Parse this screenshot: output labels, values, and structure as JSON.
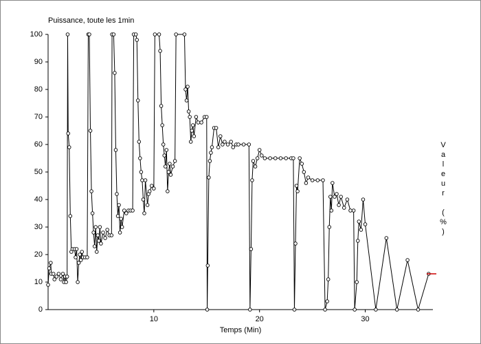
{
  "chart_data": {
    "type": "line",
    "title": "Puissance, toute les 1min",
    "x_label": "Temps (Min)",
    "y_label": "Valeur (%)",
    "color": "#000000",
    "x": [
      0,
      0.1,
      0.25,
      0.3,
      0.5,
      0.6,
      0.8,
      1.0,
      1.2,
      1.4,
      1.5,
      1.6,
      1.7,
      1.8,
      1.85,
      1.9,
      2.0,
      2.1,
      2.2,
      2.3,
      2.5,
      2.6,
      2.7,
      2.8,
      2.9,
      3.0,
      3.1,
      3.2,
      3.3,
      3.5,
      3.7,
      3.8,
      3.9,
      4.0,
      4.1,
      4.2,
      4.3,
      4.4,
      4.5,
      4.6,
      4.7,
      4.8,
      4.9,
      5.0,
      5.2,
      5.4,
      5.6,
      5.8,
      6.0,
      6.05,
      6.2,
      6.3,
      6.4,
      6.5,
      6.6,
      6.7,
      6.8,
      6.9,
      7.0,
      7.2,
      7.4,
      7.6,
      7.8,
      8.0,
      8.1,
      8.3,
      8.4,
      8.5,
      8.6,
      8.7,
      8.8,
      8.9,
      9.0,
      9.1,
      9.2,
      9.4,
      9.5,
      9.6,
      9.8,
      10.0,
      10.1,
      10.5,
      10.6,
      10.7,
      10.8,
      10.9,
      11.0,
      11.1,
      11.2,
      11.3,
      11.4,
      11.5,
      11.6,
      11.8,
      12.0,
      12.1,
      12.9,
      13.0,
      13.1,
      13.2,
      13.3,
      13.4,
      13.5,
      13.6,
      13.7,
      13.8,
      14.0,
      14.2,
      14.5,
      14.8,
      15.0,
      15.05,
      15.1,
      15.2,
      15.3,
      15.4,
      15.5,
      15.7,
      15.9,
      16.1,
      16.3,
      16.5,
      16.7,
      17.0,
      17.3,
      17.5,
      17.8,
      18.0,
      18.5,
      19.0,
      19.1,
      19.2,
      19.3,
      19.4,
      19.6,
      19.8,
      20.0,
      20.2,
      20.5,
      21.0,
      21.5,
      22.0,
      22.5,
      23.0,
      23.2,
      23.3,
      23.4,
      23.5,
      23.6,
      23.8,
      24.0,
      24.2,
      24.4,
      24.6,
      25.0,
      25.5,
      26.0,
      26.2,
      26.4,
      26.5,
      26.6,
      26.7,
      26.8,
      26.9,
      27.1,
      27.3,
      27.5,
      27.7,
      28.0,
      28.3,
      28.6,
      28.9,
      29.0,
      29.2,
      29.3,
      29.4,
      29.6,
      29.8,
      30.0,
      31.0,
      32.0,
      33.0,
      34.0,
      35.0,
      36.0
    ],
    "values": [
      9,
      15,
      17,
      13,
      13,
      11,
      12,
      13,
      11,
      13,
      10,
      12,
      10,
      12,
      100,
      64,
      59,
      34,
      21,
      22,
      22,
      19,
      22,
      10,
      17,
      20,
      18,
      21,
      19,
      19,
      19,
      100,
      100,
      65,
      43,
      35,
      28,
      23,
      30,
      21,
      27,
      25,
      30,
      24,
      28,
      26,
      29,
      27,
      27,
      100,
      100,
      86,
      58,
      42,
      34,
      38,
      28,
      33,
      30,
      36,
      35,
      36,
      36,
      36,
      100,
      100,
      98,
      76,
      61,
      55,
      50,
      47,
      40,
      35,
      47,
      38,
      42,
      43,
      45,
      44,
      100,
      100,
      94,
      74,
      67,
      60,
      56,
      52,
      58,
      43,
      50,
      53,
      49,
      52,
      54,
      100,
      100,
      80,
      76,
      81,
      72,
      70,
      61,
      65,
      67,
      63,
      70,
      68,
      68,
      70,
      70,
      0,
      16,
      48,
      54,
      57,
      59,
      66,
      66,
      59,
      63,
      60,
      61,
      60,
      61,
      59,
      60,
      60,
      60,
      60,
      0,
      22,
      47,
      54,
      52,
      55,
      58,
      56,
      55,
      55,
      55,
      55,
      55,
      55,
      55,
      0,
      24,
      45,
      43,
      55,
      53,
      50,
      46,
      48,
      47,
      47,
      47,
      0,
      3,
      11,
      30,
      41,
      36,
      46,
      41,
      42,
      38,
      41,
      37,
      40,
      36,
      36,
      0,
      10,
      25,
      32,
      29,
      40,
      31,
      0,
      26,
      0,
      18,
      0,
      13
    ],
    "cursor": {
      "x": 36.4,
      "y": 13,
      "color": "#cc0000"
    },
    "xlim": [
      0,
      36.4
    ],
    "ylim": [
      0,
      100
    ],
    "xticks": [
      10,
      20,
      30
    ],
    "yticks": [
      0,
      10,
      20,
      30,
      40,
      50,
      60,
      70,
      80,
      90,
      100
    ]
  }
}
